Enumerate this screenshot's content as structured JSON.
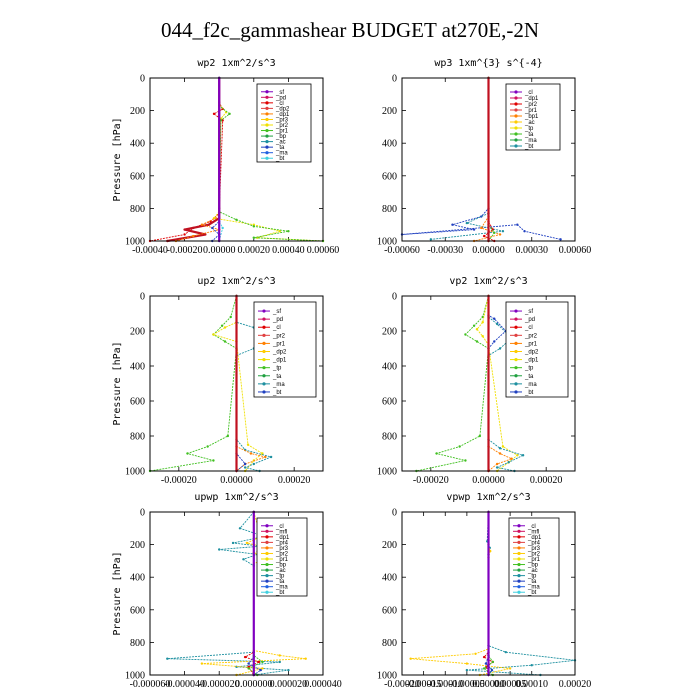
{
  "title": "044_f2c_gammashear  BUDGET at270E,-2N",
  "chart_data": [
    {
      "type": "line",
      "title": "wp2   1xm^2/s^3",
      "ylabel": "Pressure [hPa]",
      "xlim": [
        -0.0004,
        0.0006
      ],
      "ylim": [
        1000,
        0
      ],
      "xticks": [
        "-0.00040",
        "-0.00020",
        "0.00000",
        "0.00020",
        "0.00040",
        "0.00060"
      ],
      "yticks": [
        0,
        200,
        400,
        600,
        800,
        1000
      ],
      "legend": [
        "_sf",
        "_pd",
        "_cl",
        "_dp2",
        "_dp1",
        "_pr3",
        "_pr2",
        "_pr1",
        "_bp",
        "_ac",
        "_ta",
        "_ma",
        "_bt"
      ],
      "series": [
        {
          "name": "_dp2",
          "color": "#e00000",
          "x": [
            0,
            0,
            2e-05,
            -3e-05,
            2e-05,
            0,
            -5e-05,
            -0.00015,
            -0.0002,
            -0.0004
          ],
          "y": [
            0,
            150,
            190,
            220,
            260,
            830,
            880,
            920,
            960,
            1000
          ]
        },
        {
          "name": "_pr1",
          "color": "#f0e000",
          "x": [
            0,
            0,
            4e-05,
            1e-05,
            0,
            -3e-05,
            0.0002,
            0.00035,
            0.00022,
            0.0006
          ],
          "y": [
            0,
            160,
            210,
            250,
            820,
            860,
            900,
            940,
            980,
            1000
          ]
        },
        {
          "name": "_dp1",
          "color": "#40c020",
          "x": [
            0,
            0,
            6e-05,
            1e-05,
            0,
            0.0001,
            0.0002,
            0.0004,
            0.0002,
            0.0006
          ],
          "y": [
            0,
            170,
            220,
            260,
            820,
            870,
            910,
            940,
            980,
            1000
          ]
        },
        {
          "name": "_cl",
          "color": "#c01020",
          "x": [
            0,
            0,
            0,
            -6e-05,
            -0.0002,
            -8e-05,
            -0.0003
          ],
          "y": [
            0,
            800,
            860,
            900,
            930,
            960,
            1000
          ]
        },
        {
          "name": "_pr3",
          "color": "#ff8000",
          "x": [
            0,
            0,
            -0.0001,
            0,
            -0.00015,
            -0.00025
          ],
          "y": [
            0,
            850,
            900,
            930,
            970,
            1000
          ]
        },
        {
          "name": "_ta",
          "color": "#2040c0",
          "x": [
            0,
            0,
            -4e-05,
            0,
            -4e-05
          ],
          "y": [
            0,
            880,
            920,
            960,
            1000
          ]
        },
        {
          "name": "_bt",
          "color": "#40d0e0",
          "x": [
            0,
            0,
            2e-05,
            0
          ],
          "y": [
            0,
            880,
            920,
            1000
          ]
        },
        {
          "name": "_sf",
          "color": "#8000c0",
          "x": [
            0,
            0
          ],
          "y": [
            0,
            1000
          ]
        }
      ]
    },
    {
      "type": "line",
      "title": "wp3   1xm^{3} s^{-4}",
      "ylabel": "",
      "xlim": [
        -0.0006,
        0.0006
      ],
      "ylim": [
        1000,
        0
      ],
      "xticks": [
        "-0.00060",
        "-0.00030",
        "0.00000",
        "0.00030",
        "0.00060"
      ],
      "yticks": [
        0,
        200,
        400,
        600,
        800,
        1000
      ],
      "legend": [
        "_cl",
        "_dp1",
        "_pr2",
        "_pr1",
        "_bp1",
        "_ac",
        "_tp",
        "_ta",
        "_ma",
        "_bt"
      ],
      "series": [
        {
          "name": "_ta",
          "color": "#2040c0",
          "x": [
            0,
            0,
            -5e-05,
            -0.00025,
            -0.0001,
            -0.0006,
            0.0002,
            0.00025,
            0.0005
          ],
          "y": [
            0,
            800,
            850,
            900,
            930,
            960,
            900,
            940,
            990
          ]
        },
        {
          "name": "_tp",
          "color": "#1e90a0",
          "x": [
            0,
            0,
            -0.00015,
            0.0001,
            -0.0004
          ],
          "y": [
            0,
            830,
            890,
            940,
            990
          ]
        },
        {
          "name": "_pr2",
          "color": "#ff8000",
          "x": [
            0,
            0,
            -5e-05,
            8e-05,
            -0.0001
          ],
          "y": [
            0,
            850,
            920,
            960,
            1000
          ]
        },
        {
          "name": "_dp1",
          "color": "#e00000",
          "x": [
            0,
            0,
            3e-05,
            -3e-05,
            4e-05
          ],
          "y": [
            0,
            880,
            930,
            970,
            1000
          ]
        },
        {
          "name": "_ac",
          "color": "#40c020",
          "x": [
            0,
            0,
            4e-05,
            0
          ],
          "y": [
            0,
            900,
            950,
            1000
          ]
        },
        {
          "name": "_cl",
          "color": "#c01020",
          "x": [
            0,
            0
          ],
          "y": [
            0,
            1000
          ]
        }
      ]
    },
    {
      "type": "line",
      "title": "up2   1xm^2/s^3",
      "ylabel": "Pressure [hPa]",
      "xlim": [
        -0.0003,
        0.0003
      ],
      "ylim": [
        1000,
        0
      ],
      "xticks": [
        "-0.00020",
        "0.00000",
        "0.00020"
      ],
      "yticks": [
        0,
        200,
        400,
        600,
        800,
        1000
      ],
      "legend": [
        "_sf",
        "_pd",
        "_cl",
        "_pr2",
        "_pr1",
        "_dp2",
        "_dp1",
        "_tp",
        "_ta",
        "_ma",
        "_bt"
      ],
      "series": [
        {
          "name": "_dp1",
          "color": "#40c020",
          "x": [
            0,
            -2e-05,
            -5e-05,
            -8e-05,
            -4e-05,
            0,
            -3e-05,
            -0.0001,
            -0.00017,
            -8e-05,
            -0.0003
          ],
          "y": [
            0,
            120,
            170,
            220,
            260,
            300,
            800,
            860,
            900,
            940,
            1000
          ]
        },
        {
          "name": "_pr1",
          "color": "#f0e000",
          "x": [
            0,
            0,
            -4e-05,
            -8e-05,
            0,
            4e-05,
            9e-05,
            6e-05,
            3e-05
          ],
          "y": [
            0,
            150,
            180,
            220,
            260,
            850,
            900,
            940,
            1000
          ]
        },
        {
          "name": "_tp",
          "color": "#1e90a0",
          "x": [
            0,
            0,
            6e-05,
            0.00012,
            6e-05,
            0,
            0,
            3e-05,
            0.00012,
            6e-05,
            3e-05,
            8e-05
          ],
          "y": [
            0,
            150,
            180,
            260,
            300,
            340,
            820,
            880,
            920,
            960,
            980,
            1000
          ]
        },
        {
          "name": "_pr2",
          "color": "#ff8000",
          "x": [
            0,
            0,
            5e-05,
            0.0001,
            3e-05,
            0
          ],
          "y": [
            0,
            860,
            900,
            920,
            960,
            1000
          ]
        },
        {
          "name": "_ta",
          "color": "#2040c0",
          "x": [
            0,
            0,
            3e-05,
            0
          ],
          "y": [
            0,
            900,
            960,
            1000
          ]
        },
        {
          "name": "_cl",
          "color": "#c01020",
          "x": [
            0,
            0
          ],
          "y": [
            0,
            1000
          ]
        }
      ]
    },
    {
      "type": "line",
      "title": "vp2   1xm^2/s^3",
      "ylabel": "",
      "xlim": [
        -0.0003,
        0.0003
      ],
      "ylim": [
        1000,
        0
      ],
      "xticks": [
        "-0.00020",
        "0.00000",
        "0.00020"
      ],
      "yticks": [
        0,
        200,
        400,
        600,
        800,
        1000
      ],
      "legend": [
        "_sf",
        "_pd",
        "_cl",
        "_pr2",
        "_pr1",
        "_dp2",
        "_dp1",
        "_tp",
        "_ta",
        "_ma",
        "_bt"
      ],
      "series": [
        {
          "name": "_dp1",
          "color": "#40c020",
          "x": [
            0,
            -2e-05,
            -5e-05,
            -8e-05,
            -4e-05,
            0,
            -3e-05,
            -0.0001,
            -0.00018,
            -8e-05,
            -0.00025
          ],
          "y": [
            0,
            120,
            170,
            220,
            260,
            300,
            800,
            860,
            900,
            940,
            1000
          ]
        },
        {
          "name": "_pr1",
          "color": "#f0e000",
          "x": [
            0,
            -2e-05,
            -4e-05,
            -2e-05,
            0,
            5e-05,
            0.0001,
            7e-05,
            3e-05
          ],
          "y": [
            0,
            150,
            190,
            230,
            280,
            860,
            910,
            950,
            1000
          ]
        },
        {
          "name": "_tp",
          "color": "#1e90a0",
          "x": [
            0,
            0,
            3e-05,
            8e-05,
            4e-05,
            0,
            0,
            4e-05,
            0.00012,
            7e-05,
            3e-05,
            9e-05
          ],
          "y": [
            0,
            120,
            160,
            240,
            300,
            340,
            820,
            870,
            910,
            950,
            980,
            1000
          ]
        },
        {
          "name": "_ta",
          "color": "#2040c0",
          "x": [
            0,
            0,
            2e-05,
            6e-05,
            2e-05,
            0
          ],
          "y": [
            0,
            110,
            130,
            200,
            260,
            300
          ]
        },
        {
          "name": "_pr2",
          "color": "#ff8000",
          "x": [
            0,
            0,
            4e-05,
            8e-05,
            3e-05,
            0
          ],
          "y": [
            0,
            860,
            900,
            930,
            960,
            1000
          ]
        },
        {
          "name": "_cl",
          "color": "#c01020",
          "x": [
            0,
            0
          ],
          "y": [
            0,
            1000
          ]
        }
      ]
    },
    {
      "type": "line",
      "title": "upwp   1xm^2/s^3",
      "ylabel": "Pressure [hPa]",
      "xlim": [
        -6e-05,
        4e-05
      ],
      "ylim": [
        1000,
        0
      ],
      "xticks": [
        "-0.000060",
        "-0.000040",
        "-0.000020",
        "0.000000",
        "0.000020",
        "0.000040"
      ],
      "yticks": [
        0,
        200,
        400,
        600,
        800,
        1000
      ],
      "legend": [
        "_cl",
        "_mfl",
        "_dp1",
        "_pr4",
        "_pr3",
        "_pr2",
        "_pr1",
        "_bp",
        "_ac",
        "_tp",
        "_ta",
        "_ma",
        "_bt"
      ],
      "series": [
        {
          "name": "_tp",
          "color": "#1e90a0",
          "x": [
            0,
            -8e-06,
            6e-06,
            -1.2e-05,
            4e-06,
            -2e-05,
            2e-06,
            -6e-06,
            0,
            0,
            -5e-05,
            1.5e-05,
            -1e-05,
            2e-05,
            0
          ],
          "y": [
            0,
            100,
            150,
            190,
            210,
            230,
            260,
            290,
            330,
            860,
            900,
            920,
            950,
            970,
            1000
          ]
        },
        {
          "name": "_pr3",
          "color": "#ffcc00",
          "x": [
            0,
            4e-06,
            -4e-06,
            8e-06,
            0,
            6e-06,
            0,
            0,
            1.5e-05,
            3e-05,
            -3e-05,
            5e-06,
            -1e-05
          ],
          "y": [
            0,
            150,
            190,
            220,
            250,
            280,
            320,
            850,
            880,
            900,
            930,
            960,
            1000
          ]
        },
        {
          "name": "_dp1",
          "color": "#e00000",
          "x": [
            0,
            0,
            -5e-06,
            3e-06,
            -3e-06,
            0
          ],
          "y": [
            0,
            860,
            890,
            920,
            950,
            1000
          ]
        },
        {
          "name": "_bp",
          "color": "#40c020",
          "x": [
            0,
            0,
            5e-06,
            -3e-06,
            2e-06
          ],
          "y": [
            0,
            880,
            920,
            960,
            1000
          ]
        },
        {
          "name": "_ta",
          "color": "#2040c0",
          "x": [
            0,
            0,
            -3e-06,
            4e-06,
            0
          ],
          "y": [
            0,
            890,
            930,
            970,
            1000
          ]
        },
        {
          "name": "_cl",
          "color": "#8000c0",
          "x": [
            0,
            0
          ],
          "y": [
            0,
            1000
          ]
        }
      ]
    },
    {
      "type": "line",
      "title": "vpwp   1xm^2/s^3",
      "ylabel": "",
      "xlim": [
        -0.0002,
        0.0002
      ],
      "ylim": [
        1000,
        0
      ],
      "xticks": [
        "-0.00020",
        "-0.00015",
        "-0.00010",
        "-0.00005",
        "0.00000",
        "0.00005",
        "0.00010",
        "0.00020"
      ],
      "yticks": [
        0,
        200,
        400,
        600,
        800,
        1000
      ],
      "legend": [
        "_cl",
        "_mfl",
        "_dp1",
        "_pr4",
        "_pr3",
        "_pr2",
        "_pr1",
        "_bp",
        "_ac",
        "_tp",
        "_ta",
        "_ma",
        "_bt"
      ],
      "series": [
        {
          "name": "_tp",
          "color": "#1e90a0",
          "x": [
            0,
            -3e-06,
            3e-06,
            0,
            0,
            4e-05,
            0.0002,
            0.0001,
            -5e-05,
            0.00012
          ],
          "y": [
            0,
            180,
            220,
            260,
            820,
            860,
            910,
            940,
            970,
            1000
          ]
        },
        {
          "name": "_pr3",
          "color": "#ffcc00",
          "x": [
            0,
            0,
            4e-06,
            0,
            0,
            -3e-05,
            -0.00018,
            -5e-05,
            5e-05,
            -2e-05
          ],
          "y": [
            0,
            200,
            240,
            280,
            840,
            870,
            900,
            930,
            960,
            1000
          ]
        },
        {
          "name": "_dp1",
          "color": "#e00000",
          "x": [
            0,
            0,
            -1e-05,
            1e-05,
            -5e-06,
            0
          ],
          "y": [
            0,
            860,
            890,
            920,
            950,
            1000
          ]
        },
        {
          "name": "_bp",
          "color": "#40c020",
          "x": [
            0,
            0,
            1e-05,
            -1e-05,
            1e-05
          ],
          "y": [
            0,
            880,
            920,
            960,
            1000
          ]
        },
        {
          "name": "_ta",
          "color": "#2040c0",
          "x": [
            0,
            0,
            -6e-06,
            8e-06,
            0
          ],
          "y": [
            0,
            880,
            930,
            970,
            1000
          ]
        },
        {
          "name": "_cl",
          "color": "#8000c0",
          "x": [
            0,
            0
          ],
          "y": [
            0,
            1000
          ]
        }
      ]
    }
  ]
}
